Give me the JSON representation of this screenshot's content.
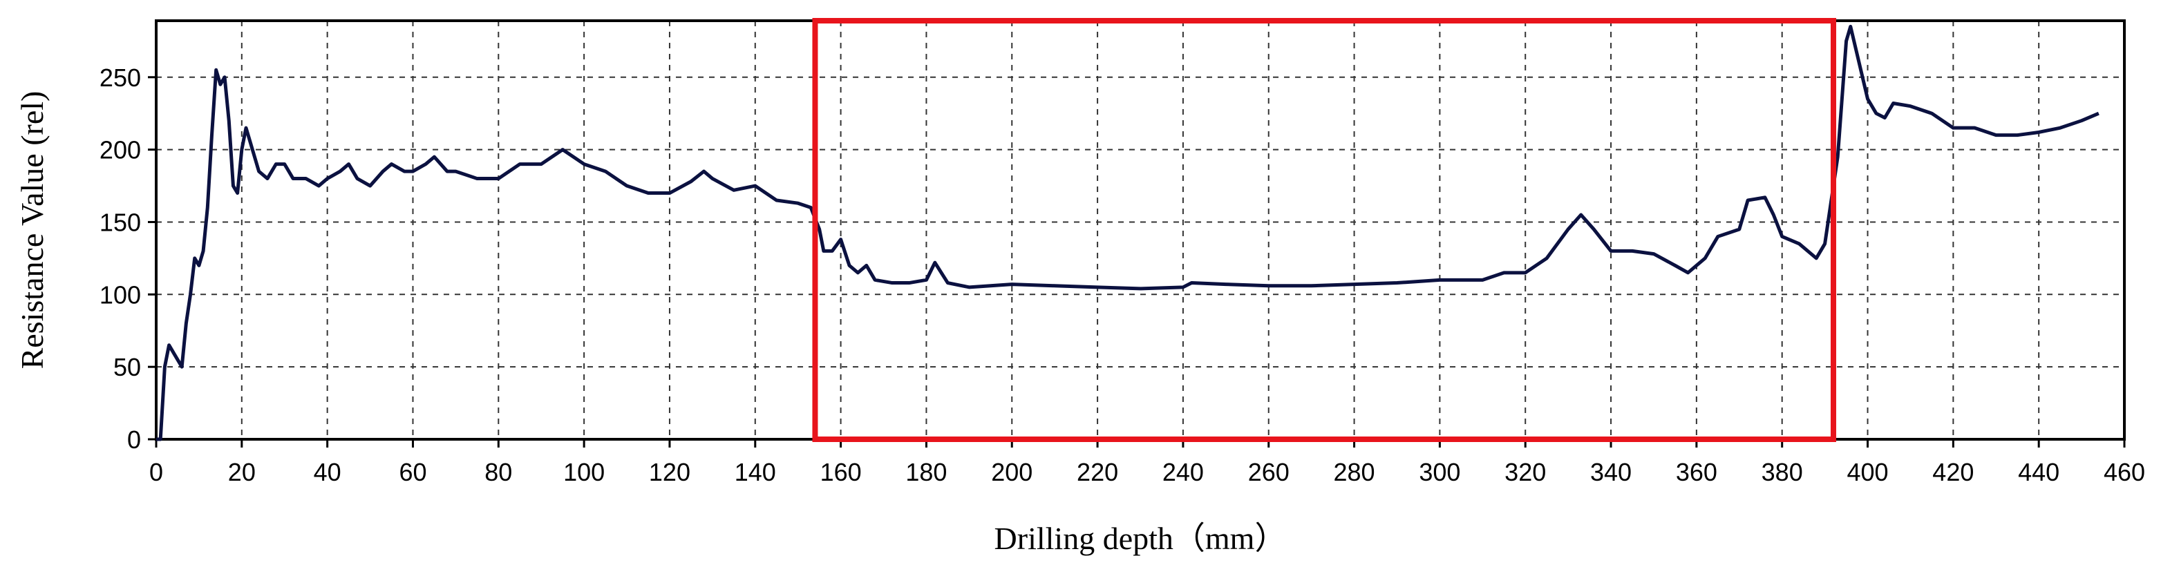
{
  "chart_data": {
    "type": "line",
    "xlabel": "Drilling depth（mm）",
    "ylabel": "Resistance Value (rel)",
    "xlim": [
      0,
      460
    ],
    "ylim": [
      0,
      289
    ],
    "xticks": [
      0,
      20,
      40,
      60,
      80,
      100,
      120,
      140,
      160,
      180,
      200,
      220,
      240,
      260,
      280,
      300,
      320,
      340,
      360,
      380,
      400,
      420,
      440,
      460
    ],
    "yticks": [
      0,
      50,
      100,
      150,
      200,
      250
    ],
    "grid": true,
    "highlight_range": [
      154,
      392
    ],
    "highlight_color": "#e8141c",
    "series": [
      {
        "color": "#0b1140",
        "x": [
          0,
          1,
          2,
          3,
          4,
          5,
          6,
          7,
          8,
          9,
          10,
          11,
          12,
          13,
          14,
          15,
          16,
          17,
          18,
          19,
          20,
          21,
          22,
          24,
          26,
          28,
          30,
          32,
          35,
          38,
          40,
          43,
          45,
          47,
          50,
          53,
          55,
          58,
          60,
          63,
          65,
          68,
          70,
          75,
          80,
          85,
          90,
          95,
          100,
          105,
          110,
          115,
          120,
          125,
          128,
          130,
          135,
          140,
          145,
          150,
          153,
          155,
          156,
          158,
          160,
          162,
          164,
          166,
          168,
          172,
          176,
          180,
          182,
          185,
          190,
          200,
          210,
          220,
          230,
          240,
          242,
          250,
          260,
          270,
          280,
          290,
          300,
          310,
          315,
          320,
          325,
          330,
          333,
          336,
          340,
          345,
          350,
          355,
          358,
          362,
          365,
          370,
          372,
          376,
          378,
          380,
          384,
          388,
          390,
          392,
          393,
          395,
          396,
          398,
          400,
          402,
          404,
          406,
          410,
          415,
          420,
          425,
          430,
          435,
          440,
          445,
          450,
          454
        ],
        "values": [
          0,
          0,
          50,
          65,
          60,
          55,
          50,
          80,
          100,
          125,
          120,
          130,
          160,
          210,
          255,
          245,
          250,
          220,
          175,
          170,
          200,
          215,
          205,
          185,
          180,
          190,
          190,
          180,
          180,
          175,
          180,
          185,
          190,
          180,
          175,
          185,
          190,
          185,
          185,
          190,
          195,
          185,
          185,
          180,
          180,
          190,
          190,
          200,
          190,
          185,
          175,
          170,
          170,
          178,
          185,
          180,
          172,
          175,
          165,
          163,
          160,
          145,
          130,
          130,
          138,
          120,
          115,
          120,
          110,
          108,
          108,
          110,
          122,
          108,
          105,
          107,
          106,
          105,
          104,
          105,
          108,
          107,
          106,
          106,
          107,
          108,
          110,
          110,
          115,
          115,
          125,
          145,
          155,
          145,
          130,
          130,
          128,
          120,
          115,
          125,
          140,
          145,
          165,
          167,
          155,
          140,
          135,
          125,
          135,
          175,
          195,
          275,
          285,
          260,
          235,
          225,
          222,
          232,
          230,
          225,
          215,
          215,
          210,
          210,
          212,
          215,
          220,
          225
        ]
      }
    ]
  }
}
